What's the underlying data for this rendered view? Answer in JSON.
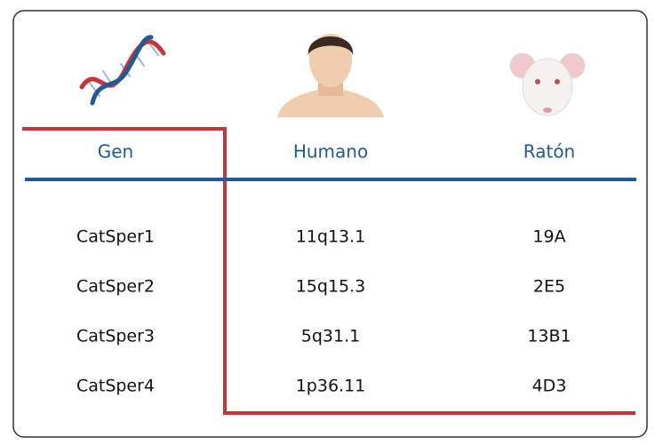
{
  "table": {
    "header": [
      "Gen",
      "Humano",
      "Ratón"
    ],
    "rows": [
      [
        "CatSper1",
        "11q13.1",
        "19A"
      ],
      [
        "CatSper2",
        "15q15.3",
        "2E5"
      ],
      [
        "CatSper3",
        "5q31.1",
        "13B1"
      ],
      [
        "CatSper4",
        "1p36.11",
        "4D3"
      ]
    ]
  }
}
